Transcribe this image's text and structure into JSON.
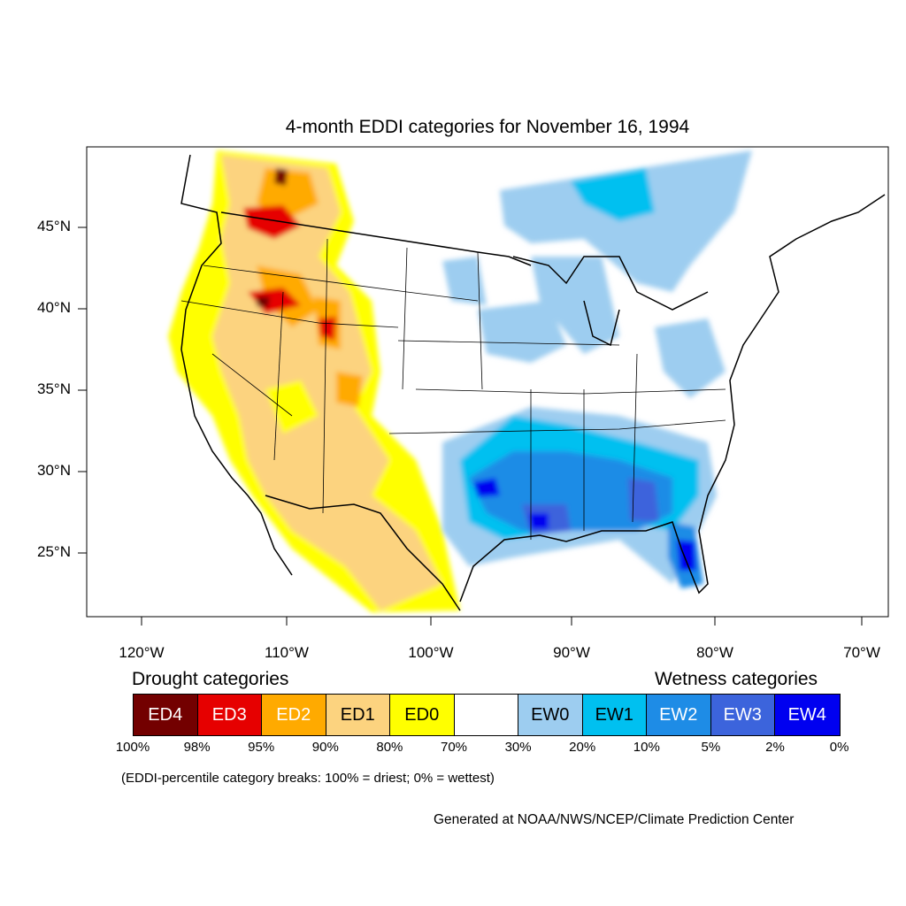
{
  "title": "4-month EDDI categories for November 16, 1994",
  "lat_labels": [
    "45°N",
    "40°N",
    "35°N",
    "30°N",
    "25°N"
  ],
  "lon_labels": [
    "120°W",
    "110°W",
    "100°W",
    "90°W",
    "80°W",
    "70°W"
  ],
  "drought_heading": "Drought categories",
  "wetness_heading": "Wetness categories",
  "categories": [
    {
      "label": "ED4",
      "color": "#730000",
      "text_color": "#ffffff"
    },
    {
      "label": "ED3",
      "color": "#e60000",
      "text_color": "#ffffff"
    },
    {
      "label": "ED2",
      "color": "#ffaa00",
      "text_color": "#ffffff"
    },
    {
      "label": "ED1",
      "color": "#fcd37f",
      "text_color": "#000000"
    },
    {
      "label": "ED0",
      "color": "#ffff00",
      "text_color": "#000000"
    },
    {
      "label": "",
      "color": "#ffffff",
      "text_color": "#000000"
    },
    {
      "label": "EW0",
      "color": "#9dcdf0",
      "text_color": "#000000"
    },
    {
      "label": "EW1",
      "color": "#00c0f0",
      "text_color": "#000000"
    },
    {
      "label": "EW2",
      "color": "#1e8ce6",
      "text_color": "#ffffff"
    },
    {
      "label": "EW3",
      "color": "#3c64dc",
      "text_color": "#ffffff"
    },
    {
      "label": "EW4",
      "color": "#0000f0",
      "text_color": "#ffffff"
    }
  ],
  "breaks": [
    "100%",
    "98%",
    "95%",
    "90%",
    "80%",
    "70%",
    "30%",
    "20%",
    "10%",
    "5%",
    "2%",
    "0%"
  ],
  "note": "(EDDI-percentile category breaks: 100% = driest; 0% = wettest)",
  "credit": "Generated at NOAA/NWS/NCEP/Climate Prediction Center"
}
